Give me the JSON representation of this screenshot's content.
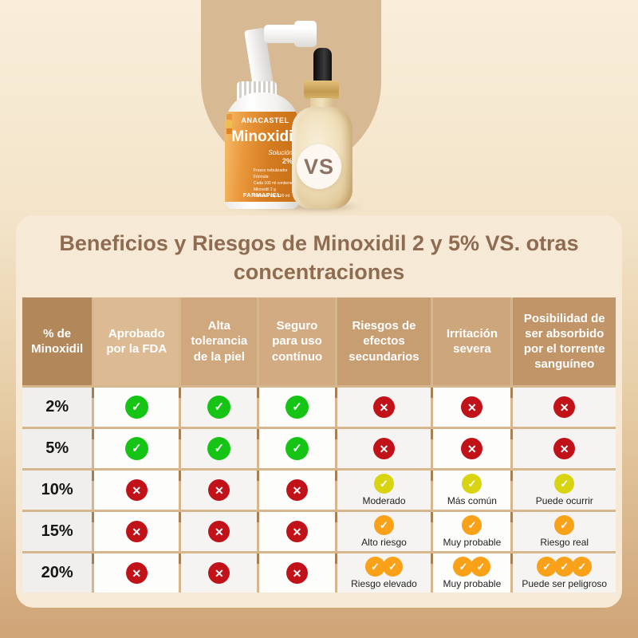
{
  "title": "Beneficios y Riesgos de Minoxidil 2 y 5% VS. otras concentraciones",
  "hero": {
    "vs_label": "VS",
    "spray_bottle": {
      "brand": "ANACASTEL",
      "product": "Minoxidil",
      "form": "Solución",
      "concentration": "2%",
      "lines": [
        "Frasco nebulizador",
        "Fórmula:",
        "Cada 100 ml contiene:",
        "Minoxidil 2 g",
        "Vehículo cbp 100 ml"
      ],
      "manufacturer": "FARMAPIEL"
    }
  },
  "table": {
    "columns": [
      "% de Minoxidil",
      "Aprobado por la FDA",
      "Alta tolerancia de la piel",
      "Seguro para uso contínuo",
      "Riesgos de efectos secundarios",
      "Irritación severa",
      "Posibilidad de ser absorbido por el torrente sanguíneo"
    ],
    "rows": [
      {
        "pct": "2%",
        "cells": [
          {
            "icon": "check-green"
          },
          {
            "icon": "check-green"
          },
          {
            "icon": "check-green"
          },
          {
            "icon": "x-red"
          },
          {
            "icon": "x-red"
          },
          {
            "icon": "x-red"
          }
        ]
      },
      {
        "pct": "5%",
        "cells": [
          {
            "icon": "check-green"
          },
          {
            "icon": "check-green"
          },
          {
            "icon": "check-green"
          },
          {
            "icon": "x-red"
          },
          {
            "icon": "x-red"
          },
          {
            "icon": "x-red"
          }
        ]
      },
      {
        "pct": "10%",
        "cells": [
          {
            "icon": "x-red"
          },
          {
            "icon": "x-red"
          },
          {
            "icon": "x-red"
          },
          {
            "icon": "check-yellow",
            "label": "Moderado"
          },
          {
            "icon": "check-yellow",
            "label": "Más común"
          },
          {
            "icon": "check-yellow",
            "label": "Puede ocurrir"
          }
        ]
      },
      {
        "pct": "15%",
        "cells": [
          {
            "icon": "x-red"
          },
          {
            "icon": "x-red"
          },
          {
            "icon": "x-red"
          },
          {
            "icon": "check-orange",
            "label": "Alto riesgo"
          },
          {
            "icon": "check-orange",
            "label": "Muy probable"
          },
          {
            "icon": "check-orange",
            "label": "Riesgo real"
          }
        ]
      },
      {
        "pct": "20%",
        "cells": [
          {
            "icon": "x-red"
          },
          {
            "icon": "x-red"
          },
          {
            "icon": "x-red"
          },
          {
            "icon": "check-orange",
            "count": 2,
            "label": "Riesgo elevado"
          },
          {
            "icon": "check-orange",
            "count": 2,
            "label": "Muy probable"
          },
          {
            "icon": "check-orange",
            "count": 3,
            "label": "Puede ser peligroso"
          }
        ]
      }
    ]
  },
  "colors": {
    "background_top": "#f9eeda",
    "background_bottom": "#cfa477",
    "arch": "#d7ba93",
    "panel": "#f6e9d6",
    "title_text": "#8f6c51",
    "header_columns": [
      "#b2875a",
      "#dcbb94",
      "#cfa87d",
      "#d2ab82",
      "#c79d72",
      "#cda67b",
      "#c29568"
    ],
    "row_header_bg": "#f0efed",
    "cell_white": "#fdfdfc",
    "cell_gray": "#f5f4f2",
    "grid_line": "#d6b68c",
    "tick": "#a87e53",
    "vs_text": "#8b7263",
    "icons": {
      "green": "#15c415",
      "red": "#c1121a",
      "yellow": "#d9d411",
      "orange": "#f8a119"
    }
  }
}
